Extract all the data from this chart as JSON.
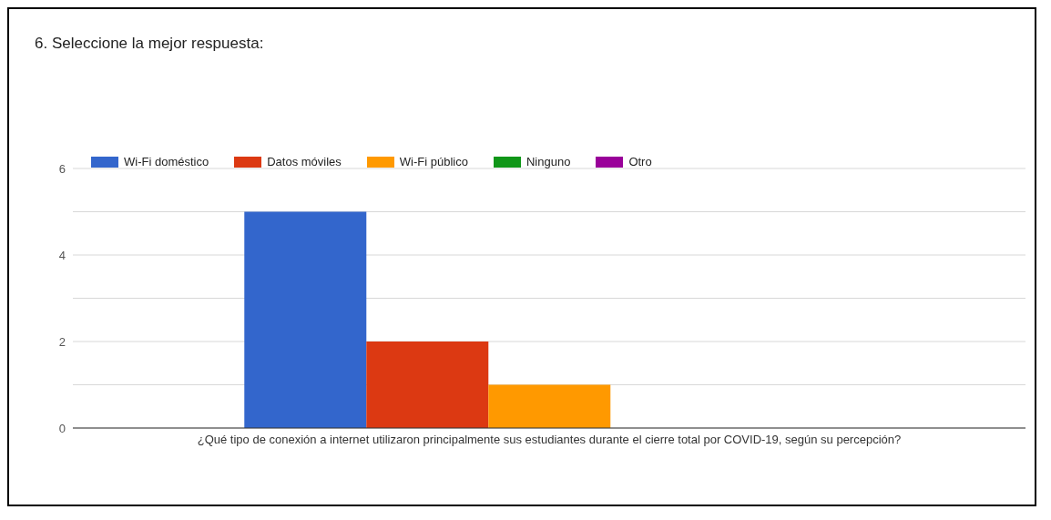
{
  "chart_data": {
    "type": "bar",
    "title": "6. Seleccione la mejor respuesta:",
    "categories": [
      "¿Qué tipo de conexión a internet utilizaron principalmente sus estudiantes durante el cierre total por COVID-19, según su percepción?"
    ],
    "series": [
      {
        "name": "Wi-Fi doméstico",
        "color": "#3366cc",
        "values": [
          5
        ]
      },
      {
        "name": "Datos móviles",
        "color": "#dc3912",
        "values": [
          2
        ]
      },
      {
        "name": "Wi-Fi público",
        "color": "#ff9900",
        "values": [
          1
        ]
      },
      {
        "name": "Ninguno",
        "color": "#109618",
        "values": [
          0
        ]
      },
      {
        "name": "Otro",
        "color": "#990099",
        "values": [
          0
        ]
      }
    ],
    "ylim": [
      0,
      6
    ],
    "yticks": [
      0,
      {
        "value": 1,
        "label": null
      },
      2,
      {
        "value": 3,
        "label": null
      },
      4,
      {
        "value": 5,
        "label": null
      },
      6
    ],
    "grid": "y",
    "legend": "top left"
  }
}
